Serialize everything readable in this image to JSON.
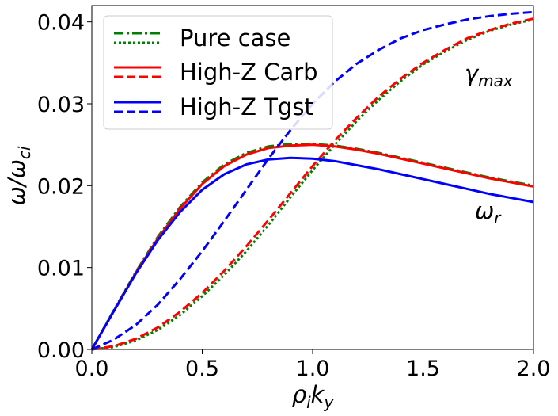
{
  "chart_data": {
    "type": "line",
    "title": "",
    "xlabel": "ρ",
    "xlabel_sub": "i",
    "xlabel_main2": "k",
    "xlabel_sub2": "y",
    "ylabel": "ω/ω",
    "ylabel_sub": "ci",
    "xlim": [
      0.0,
      2.0
    ],
    "ylim": [
      0.0,
      0.042
    ],
    "x_ticks": [
      0.0,
      0.5,
      1.0,
      1.5,
      2.0
    ],
    "x_tick_labels": [
      "0.0",
      "0.5",
      "1.0",
      "1.5",
      "2.0"
    ],
    "y_ticks": [
      0.0,
      0.01,
      0.02,
      0.03,
      0.04
    ],
    "y_tick_labels": [
      "0.00",
      "0.01",
      "0.02",
      "0.03",
      "0.04"
    ],
    "grid": false,
    "legend_position": "top-left",
    "legend": [
      {
        "label": "Pure case",
        "color": "#008000",
        "styles": [
          "dashdot",
          "dotted"
        ]
      },
      {
        "label": "High-Z Carb",
        "color": "#ff0000",
        "styles": [
          "solid",
          "dashed"
        ]
      },
      {
        "label": "High-Z Tgst",
        "color": "#0000ff",
        "styles": [
          "solid",
          "dashed"
        ]
      }
    ],
    "annotations": [
      {
        "text": "γ",
        "sub": "max",
        "near": "upper-right, above gamma curves"
      },
      {
        "text": "ω",
        "sub": "r",
        "near": "right, below omega curves"
      }
    ],
    "x": [
      0.0,
      0.1,
      0.2,
      0.3,
      0.4,
      0.5,
      0.6,
      0.7,
      0.8,
      0.9,
      1.0,
      1.1,
      1.2,
      1.3,
      1.4,
      1.5,
      1.6,
      1.7,
      1.8,
      1.9,
      2.0
    ],
    "series": [
      {
        "name": "Pure case ω_r",
        "color": "#008000",
        "dash": "dashdot",
        "values": [
          0.0,
          0.0048,
          0.0095,
          0.0138,
          0.0174,
          0.0204,
          0.0226,
          0.024,
          0.0248,
          0.0251,
          0.0251,
          0.0249,
          0.0245,
          0.024,
          0.0234,
          0.0228,
          0.0222,
          0.0216,
          0.021,
          0.0205,
          0.02
        ]
      },
      {
        "name": "Pure case γ_max",
        "color": "#008000",
        "dash": "dotted",
        "values": [
          0.0,
          0.0003,
          0.0011,
          0.0024,
          0.0042,
          0.0065,
          0.0091,
          0.012,
          0.0152,
          0.0186,
          0.0219,
          0.025,
          0.0279,
          0.0305,
          0.0328,
          0.0348,
          0.0364,
          0.0378,
          0.0389,
          0.0397,
          0.0403
        ]
      },
      {
        "name": "High-Z Carb ω_r",
        "color": "#ff0000",
        "dash": "solid",
        "values": [
          0.0,
          0.0047,
          0.0094,
          0.0136,
          0.0172,
          0.0202,
          0.0224,
          0.0238,
          0.0246,
          0.0249,
          0.025,
          0.0248,
          0.0244,
          0.0239,
          0.0233,
          0.0227,
          0.0221,
          0.0215,
          0.0209,
          0.0204,
          0.0199
        ]
      },
      {
        "name": "High-Z Carb γ_max",
        "color": "#ff0000",
        "dash": "dashed",
        "values": [
          0.0,
          0.0004,
          0.0013,
          0.0027,
          0.0046,
          0.0069,
          0.0096,
          0.0126,
          0.0158,
          0.0191,
          0.0224,
          0.0255,
          0.0283,
          0.0309,
          0.0331,
          0.035,
          0.0366,
          0.038,
          0.039,
          0.0398,
          0.0404
        ]
      },
      {
        "name": "High-Z Tgst ω_r",
        "color": "#0000ff",
        "dash": "solid",
        "values": [
          0.0,
          0.0047,
          0.0093,
          0.0134,
          0.0168,
          0.0195,
          0.0214,
          0.0226,
          0.0232,
          0.0234,
          0.0233,
          0.023,
          0.0225,
          0.022,
          0.0214,
          0.0208,
          0.0202,
          0.0196,
          0.019,
          0.0185,
          0.018
        ]
      },
      {
        "name": "High-Z Tgst γ_max",
        "color": "#0000ff",
        "dash": "dashed",
        "values": [
          0.0,
          0.0012,
          0.003,
          0.0055,
          0.0086,
          0.012,
          0.0157,
          0.0195,
          0.0233,
          0.0268,
          0.03,
          0.0327,
          0.0349,
          0.0366,
          0.038,
          0.039,
          0.0397,
          0.0403,
          0.0407,
          0.041,
          0.0412
        ]
      }
    ]
  }
}
